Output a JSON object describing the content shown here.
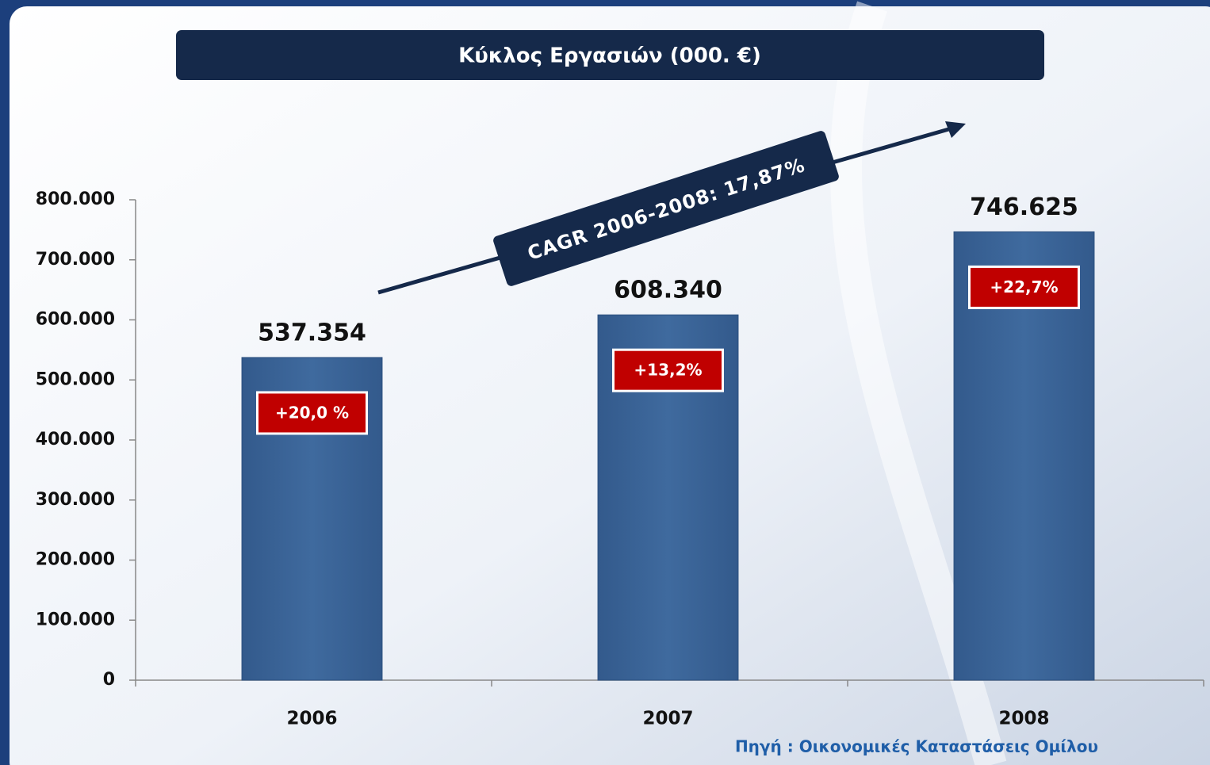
{
  "chart_data": {
    "type": "bar",
    "title": "Κύκλος Εργασιών (000. €)",
    "categories": [
      "2006",
      "2007",
      "2008"
    ],
    "values": [
      537354,
      608340,
      746625
    ],
    "value_labels": [
      "537.354",
      "608.340",
      "746.625"
    ],
    "growth_labels": [
      "+20,0 %",
      "+13,2%",
      "+22,7%"
    ],
    "annotation": "CAGR 2006-2008: 17,87%",
    "source": "Πηγή : Οικονομικές Καταστάσεις Ομίλου",
    "color": "#3d6698",
    "ylim": [
      0,
      800000
    ],
    "yticks": [
      0,
      {
        "value": 100000,
        "label": "100.000"
      },
      {
        "value": 200000,
        "label": "200.000"
      },
      {
        "value": 300000,
        "label": "300.000"
      },
      {
        "value": 400000,
        "label": "400.000"
      },
      {
        "value": 500000,
        "label": "500.000"
      },
      {
        "value": 600000,
        "label": "600.000"
      },
      {
        "value": 700000,
        "label": "700.000"
      },
      {
        "value": 800000,
        "label": "800.000"
      }
    ],
    "grid": false
  }
}
